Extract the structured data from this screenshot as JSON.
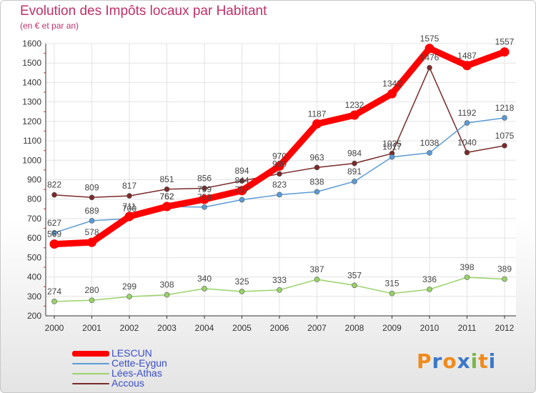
{
  "chart_data": {
    "type": "line",
    "title": "Evolution des Impôts locaux par Habitant",
    "subtitle": "(en € et par an)",
    "xlabel": "",
    "ylabel": "",
    "x": [
      "2000",
      "2001",
      "2002",
      "2003",
      "2004",
      "2005",
      "2006",
      "2007",
      "2008",
      "2009",
      "2010",
      "2011",
      "2012"
    ],
    "ylim": [
      200,
      1600
    ],
    "yticks": [
      "200",
      "300",
      "400",
      "500",
      "600",
      "700",
      "800",
      "900",
      "1000",
      "1100",
      "1200",
      "1300",
      "1400",
      "1500",
      "1600"
    ],
    "grid": true,
    "legend_position": "bottom-left",
    "series": [
      {
        "name": "LESCUN",
        "color": "#ff0000",
        "values": [
          569,
          578,
          711,
          762,
          799,
          844,
          970,
          1187,
          1232,
          1342,
          1575,
          1487,
          1557
        ],
        "labels": [
          "569",
          "578",
          "711",
          "762",
          "799",
          "844",
          "970",
          "1187",
          "1232",
          "1342",
          "1575",
          "1487",
          "1557"
        ]
      },
      {
        "name": "Cette-Eygun",
        "color": "#5b9bd5",
        "values": [
          627,
          689,
          700,
          762,
          759,
          797,
          823,
          838,
          891,
          1017,
          1038,
          1192,
          1218
        ],
        "labels": [
          "627",
          "689",
          "700",
          "762",
          "759",
          "797",
          "823",
          "838",
          "891",
          "1017",
          "1038",
          "1192",
          "1218"
        ]
      },
      {
        "name": "Lées-Athas",
        "color": "#99d26a",
        "values": [
          274,
          280,
          299,
          308,
          340,
          325,
          333,
          387,
          357,
          315,
          336,
          398,
          389
        ],
        "labels": [
          "274",
          "280",
          "299",
          "308",
          "340",
          "325",
          "333",
          "387",
          "357",
          "315",
          "336",
          "398",
          "389"
        ]
      },
      {
        "name": "Accous",
        "color": "#7a2a2a",
        "values": [
          822,
          809,
          817,
          851,
          856,
          894,
          930,
          963,
          984,
          1035,
          1476,
          1040,
          1075
        ],
        "labels": [
          "822",
          "809",
          "817",
          "851",
          "856",
          "894",
          "930",
          "963",
          "984",
          "1035",
          "1476",
          "1040",
          "1075"
        ]
      }
    ]
  },
  "brand": {
    "name": "Proxiti",
    "letters": [
      "P",
      "r",
      "o",
      "x",
      "i",
      "t",
      "i"
    ],
    "colors": [
      "#f08a1c",
      "#3a78c8",
      "#f08a1c",
      "#3a78c8",
      "#7ab648",
      "#f08a1c",
      "#3a78c8"
    ]
  }
}
